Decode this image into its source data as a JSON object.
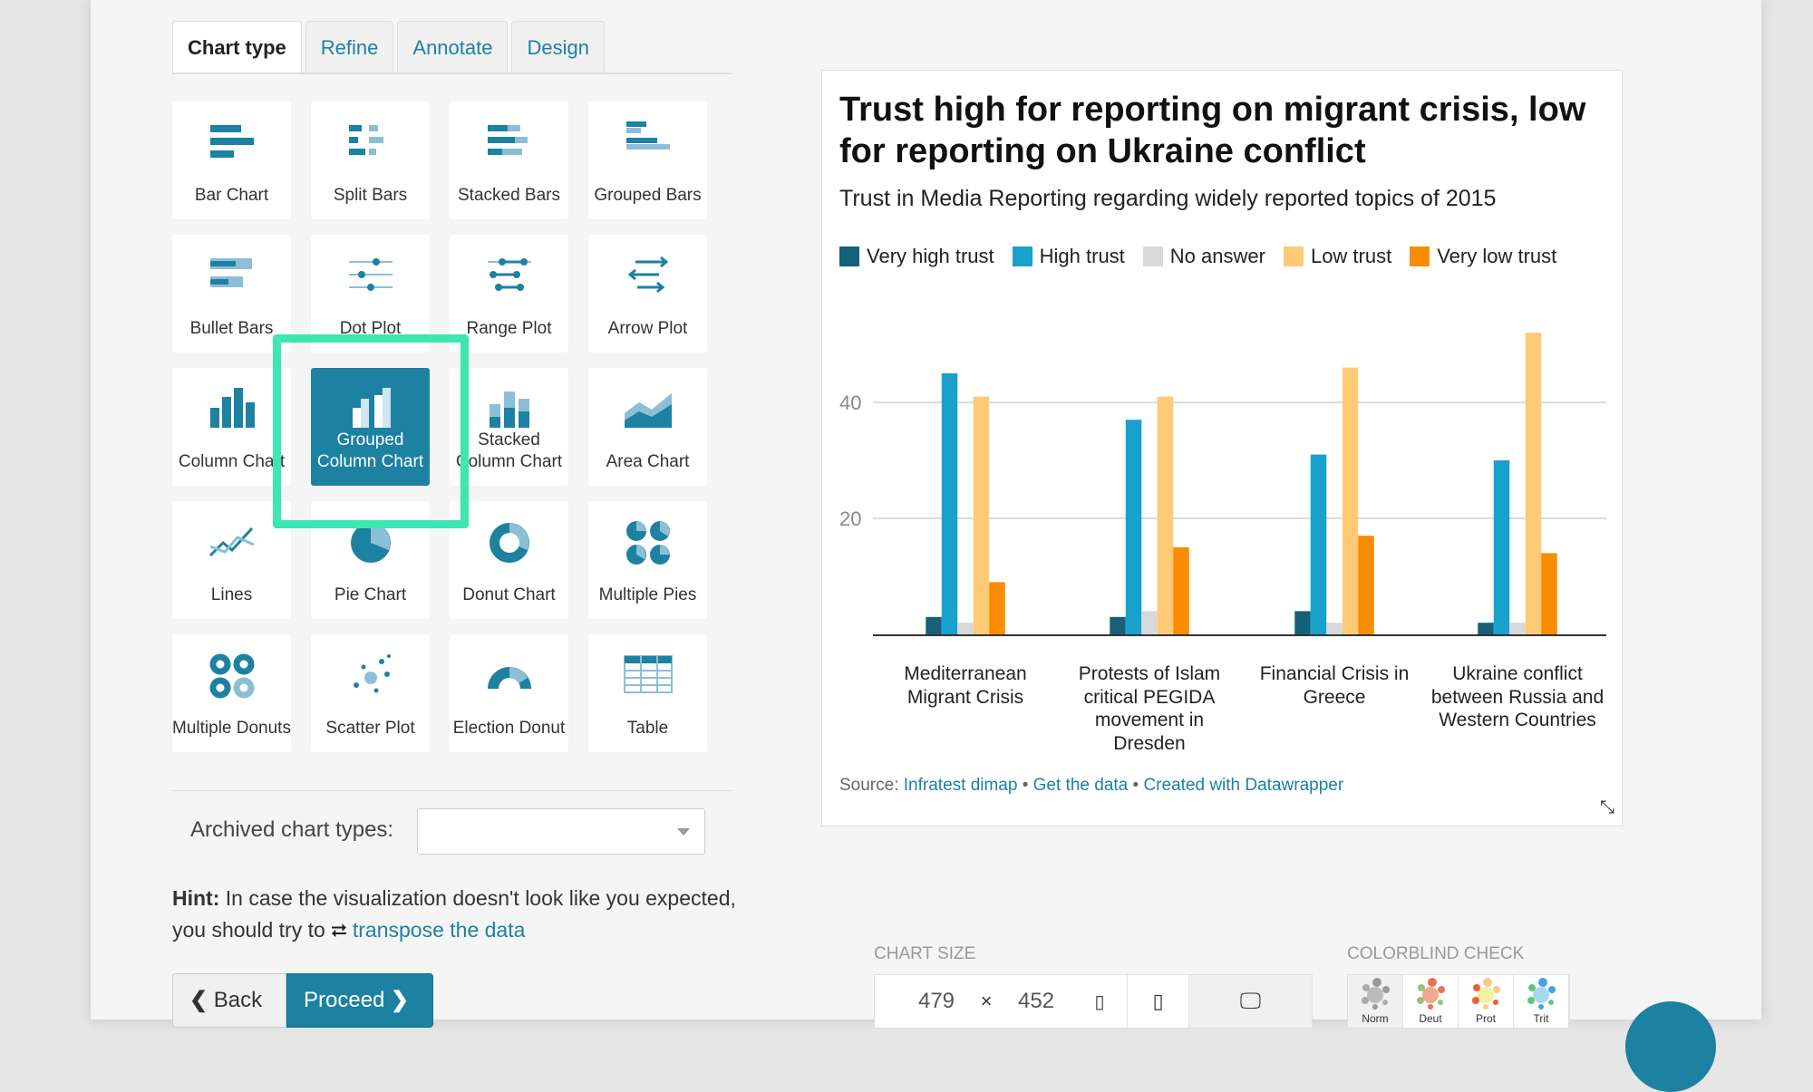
{
  "tabs": [
    "Chart type",
    "Refine",
    "Annotate",
    "Design"
  ],
  "chart_types": [
    {
      "label": "Bar Chart",
      "icon": "bar"
    },
    {
      "label": "Split Bars",
      "icon": "split"
    },
    {
      "label": "Stacked Bars",
      "icon": "stacked"
    },
    {
      "label": "Grouped Bars",
      "icon": "grouped"
    },
    {
      "label": "Bullet Bars",
      "icon": "bullet"
    },
    {
      "label": "Dot Plot",
      "icon": "dot"
    },
    {
      "label": "Range Plot",
      "icon": "range"
    },
    {
      "label": "Arrow Plot",
      "icon": "arrow"
    },
    {
      "label": "Column Chart",
      "icon": "column"
    },
    {
      "label": "Grouped Column Chart",
      "icon": "gcolumn"
    },
    {
      "label": "Stacked Column Chart",
      "icon": "scolumn"
    },
    {
      "label": "Area Chart",
      "icon": "area"
    },
    {
      "label": "Lines",
      "icon": "lines"
    },
    {
      "label": "Pie Chart",
      "icon": "pie"
    },
    {
      "label": "Donut Chart",
      "icon": "donut"
    },
    {
      "label": "Multiple Pies",
      "icon": "mpies"
    },
    {
      "label": "Multiple Donuts",
      "icon": "mdonuts"
    },
    {
      "label": "Scatter Plot",
      "icon": "scatter"
    },
    {
      "label": "Election Donut",
      "icon": "edonut"
    },
    {
      "label": "Table",
      "icon": "table"
    }
  ],
  "selected_index": 9,
  "archived_label": "Archived chart types:",
  "archived_value": "",
  "hint": {
    "bold": "Hint:",
    "text": " In case the visualization doesn't look like you expected, you should try to ",
    "link": "transpose the data"
  },
  "buttons": {
    "back": "Back",
    "proceed": "Proceed"
  },
  "chart": {
    "source_label": "Source:",
    "source_link": "Infratest dimap",
    "sep": "•",
    "get_data": "Get the data",
    "created": "Created with Datawrapper"
  },
  "chart_data": {
    "type": "bar",
    "title": "Trust high for reporting on migrant crisis, low for reporting on Ukraine conflict",
    "subtitle": "Trust in Media Reporting regarding widely reported topics of 2015",
    "categories": [
      "Mediterranean Migrant Crisis",
      "Protests of Islam critical PEGIDA movement in Dresden",
      "Financial Crisis in Greece",
      "Ukraine conflict between Russia and Western Countries"
    ],
    "series": [
      {
        "name": "Very high trust",
        "color": "#15607a",
        "values": [
          3,
          3,
          4,
          2
        ]
      },
      {
        "name": "High trust",
        "color": "#18a1cd",
        "values": [
          45,
          37,
          31,
          30
        ]
      },
      {
        "name": "No answer",
        "color": "#d9d9d9",
        "values": [
          2,
          4,
          2,
          2
        ]
      },
      {
        "name": "Low trust",
        "color": "#ffca76",
        "values": [
          41,
          41,
          46,
          52
        ]
      },
      {
        "name": "Very low trust",
        "color": "#fa8c00",
        "values": [
          9,
          15,
          17,
          14
        ]
      }
    ],
    "yticks": [
      "20",
      "40"
    ],
    "ylim": [
      0,
      52
    ],
    "grid": true,
    "legend_position": "top-left"
  },
  "chart_size": {
    "label": "CHART SIZE",
    "width": "479",
    "x": "×",
    "height": "452"
  },
  "colorblind": {
    "label": "COLORBLIND CHECK",
    "modes": [
      "Norm",
      "Deut",
      "Prot",
      "Trit"
    ]
  }
}
